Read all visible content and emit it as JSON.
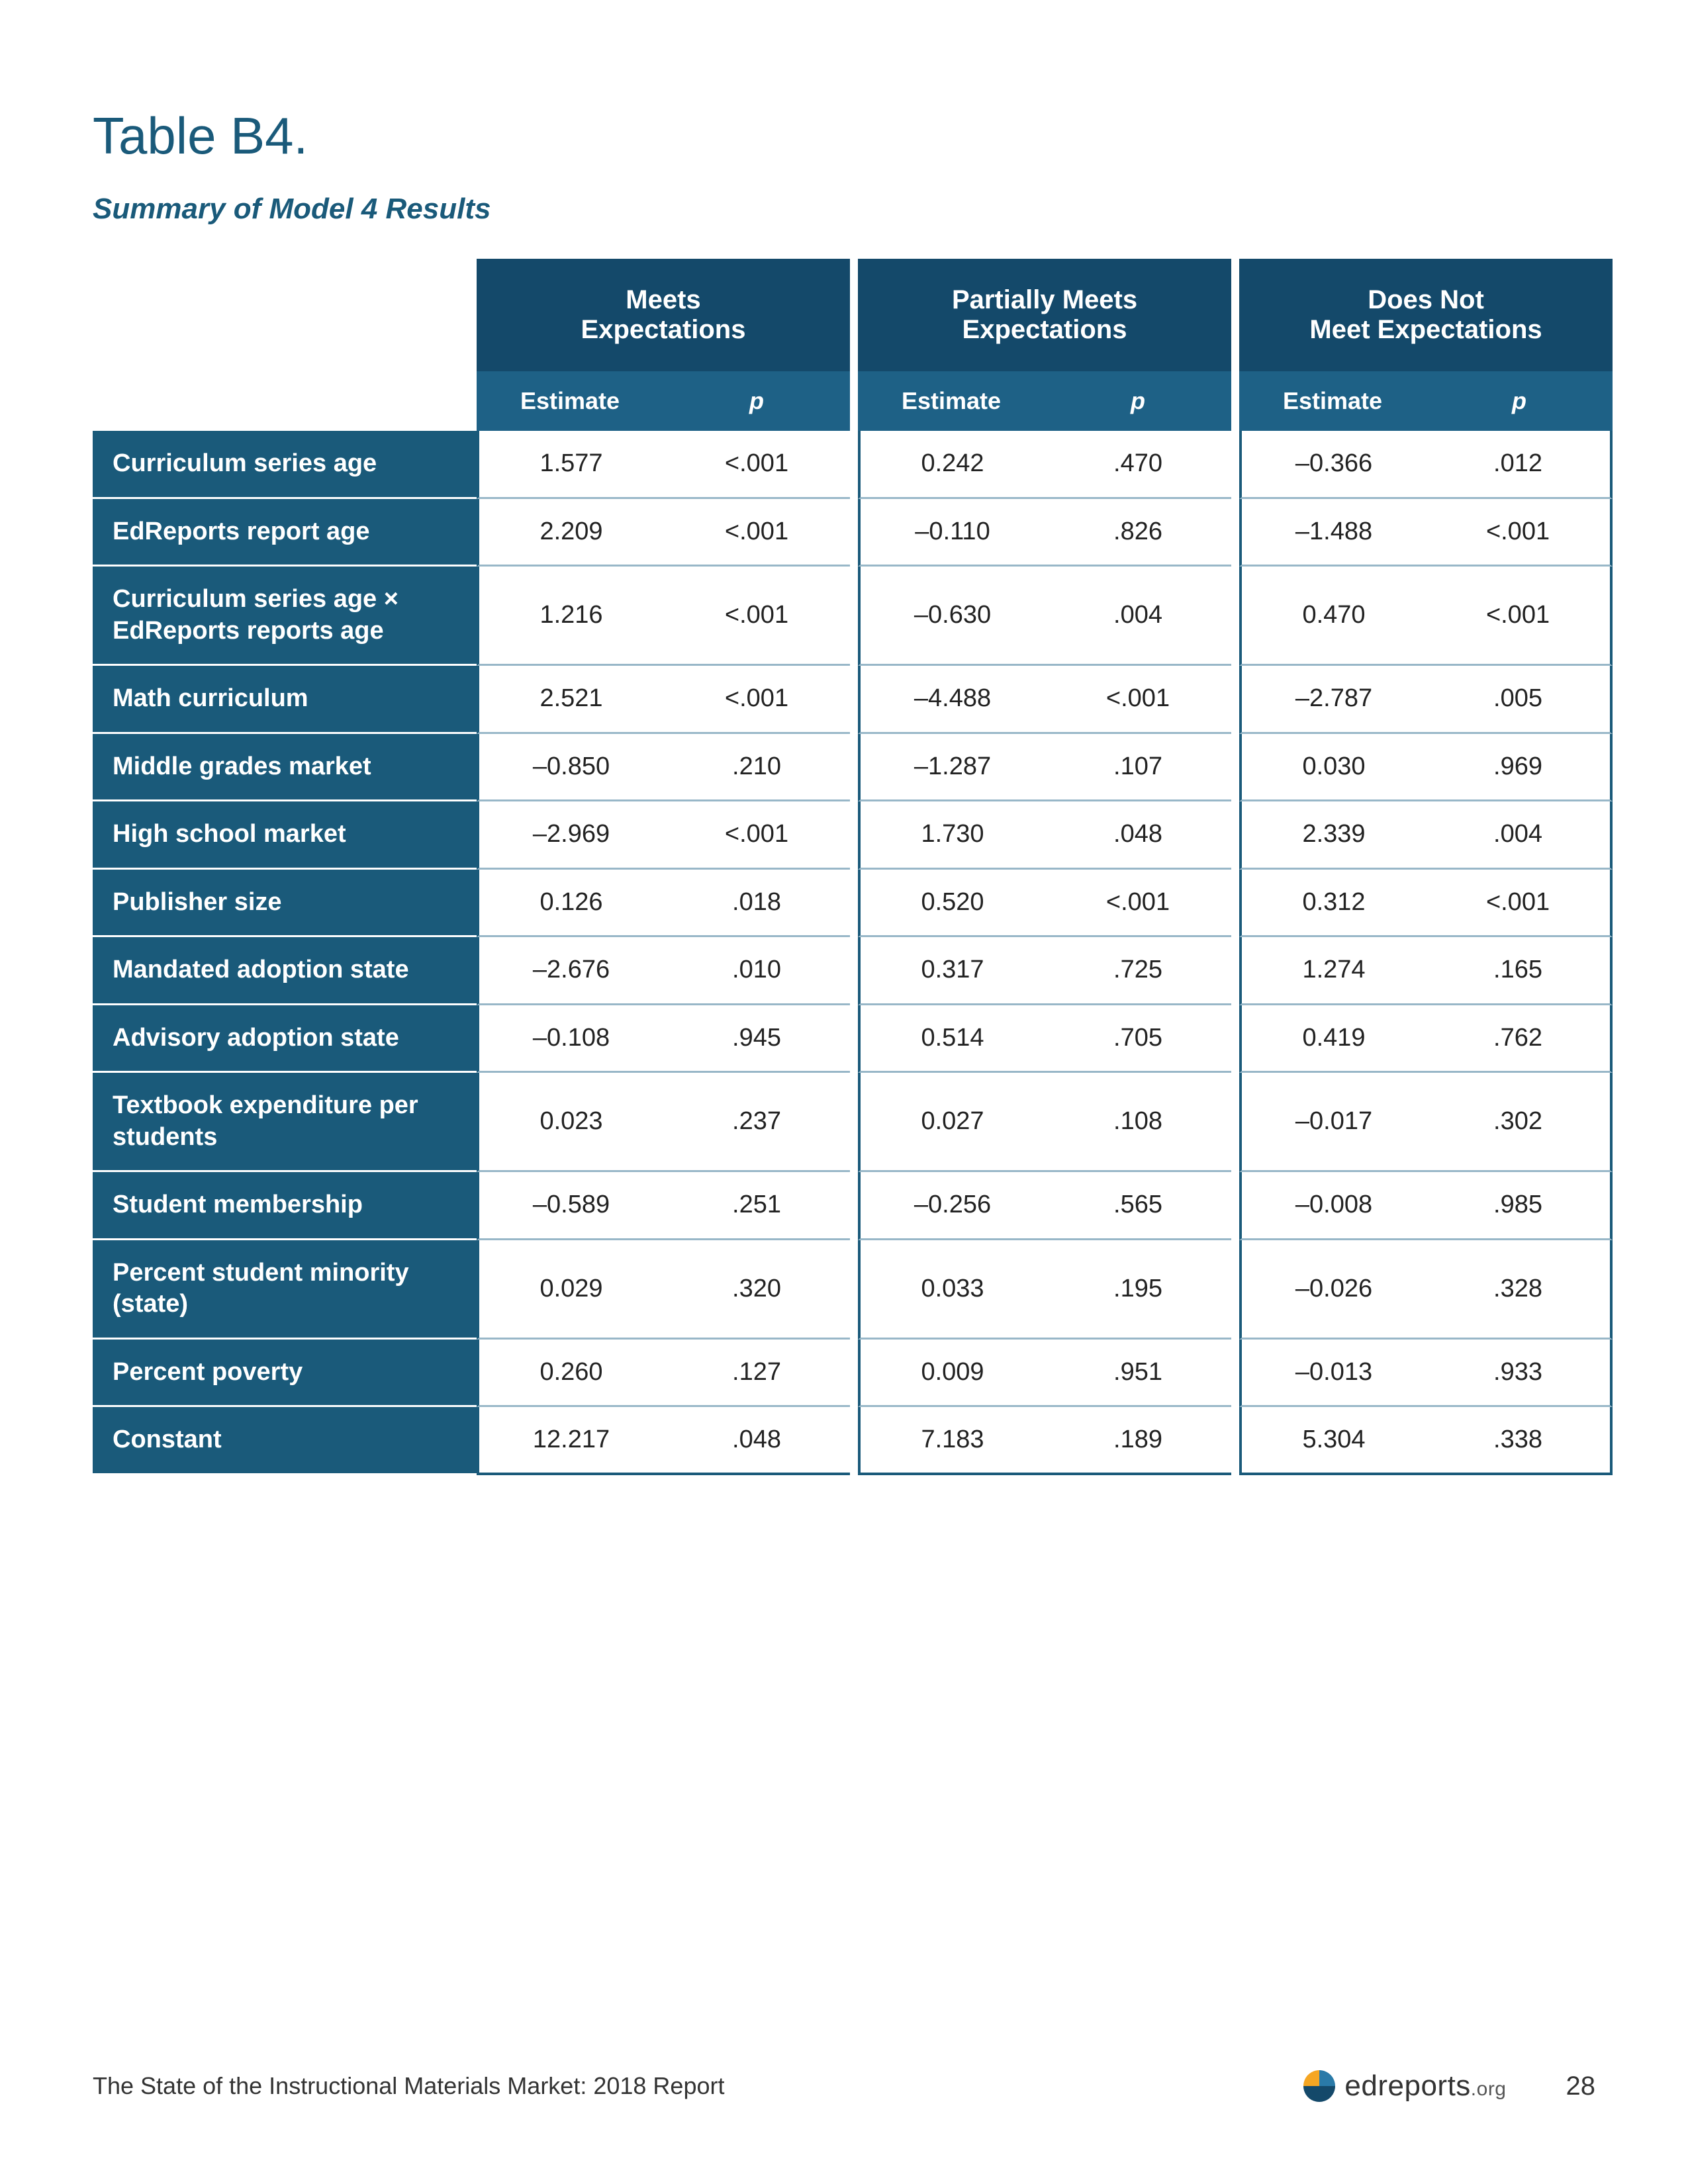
{
  "title": "Table B4.",
  "subtitle": "Summary of Model 4 Results",
  "colors": {
    "header_dark": "#14496a",
    "header_mid": "#1e6186",
    "rowlabel_bg": "#1a5a7a",
    "title_color": "#1a5a7a",
    "grid_line": "#98b7c8",
    "text": "#222222",
    "background": "#ffffff"
  },
  "table": {
    "type": "table",
    "groups": [
      "Meets\nExpectations",
      "Partially Meets\nExpectations",
      "Does Not\nMeet Expectations"
    ],
    "subcolumns": [
      "Estimate",
      "p"
    ],
    "rows": [
      {
        "label": "Curriculum series age",
        "meets": {
          "estimate": "1.577",
          "p": "<.001"
        },
        "partial": {
          "estimate": "0.242",
          "p": ".470"
        },
        "doesnot": {
          "estimate": "–0.366",
          "p": ".012"
        }
      },
      {
        "label": "EdReports report age",
        "meets": {
          "estimate": "2.209",
          "p": "<.001"
        },
        "partial": {
          "estimate": "–0.110",
          "p": ".826"
        },
        "doesnot": {
          "estimate": "–1.488",
          "p": "<.001"
        }
      },
      {
        "label": "Curriculum series age × EdReports reports age",
        "meets": {
          "estimate": "1.216",
          "p": "<.001"
        },
        "partial": {
          "estimate": "–0.630",
          "p": ".004"
        },
        "doesnot": {
          "estimate": "0.470",
          "p": "<.001"
        }
      },
      {
        "label": "Math curriculum",
        "meets": {
          "estimate": "2.521",
          "p": "<.001"
        },
        "partial": {
          "estimate": "–4.488",
          "p": "<.001"
        },
        "doesnot": {
          "estimate": "–2.787",
          "p": ".005"
        }
      },
      {
        "label": "Middle grades market",
        "meets": {
          "estimate": "–0.850",
          "p": ".210"
        },
        "partial": {
          "estimate": "–1.287",
          "p": ".107"
        },
        "doesnot": {
          "estimate": "0.030",
          "p": ".969"
        }
      },
      {
        "label": "High school market",
        "meets": {
          "estimate": "–2.969",
          "p": "<.001"
        },
        "partial": {
          "estimate": "1.730",
          "p": ".048"
        },
        "doesnot": {
          "estimate": "2.339",
          "p": ".004"
        }
      },
      {
        "label": "Publisher size",
        "meets": {
          "estimate": "0.126",
          "p": ".018"
        },
        "partial": {
          "estimate": "0.520",
          "p": "<.001"
        },
        "doesnot": {
          "estimate": "0.312",
          "p": "<.001"
        }
      },
      {
        "label": "Mandated adoption state",
        "meets": {
          "estimate": "–2.676",
          "p": ".010"
        },
        "partial": {
          "estimate": "0.317",
          "p": ".725"
        },
        "doesnot": {
          "estimate": "1.274",
          "p": ".165"
        }
      },
      {
        "label": "Advisory adoption state",
        "meets": {
          "estimate": "–0.108",
          "p": ".945"
        },
        "partial": {
          "estimate": "0.514",
          "p": ".705"
        },
        "doesnot": {
          "estimate": "0.419",
          "p": ".762"
        }
      },
      {
        "label": "Textbook expenditure per students",
        "meets": {
          "estimate": "0.023",
          "p": ".237"
        },
        "partial": {
          "estimate": "0.027",
          "p": ".108"
        },
        "doesnot": {
          "estimate": "–0.017",
          "p": ".302"
        }
      },
      {
        "label": "Student membership",
        "meets": {
          "estimate": "–0.589",
          "p": ".251"
        },
        "partial": {
          "estimate": "–0.256",
          "p": ".565"
        },
        "doesnot": {
          "estimate": "–0.008",
          "p": ".985"
        }
      },
      {
        "label": "Percent student minority (state)",
        "meets": {
          "estimate": "0.029",
          "p": ".320"
        },
        "partial": {
          "estimate": "0.033",
          "p": ".195"
        },
        "doesnot": {
          "estimate": "–0.026",
          "p": ".328"
        }
      },
      {
        "label": "Percent poverty",
        "meets": {
          "estimate": "0.260",
          "p": ".127"
        },
        "partial": {
          "estimate": "0.009",
          "p": ".951"
        },
        "doesnot": {
          "estimate": "–0.013",
          "p": ".933"
        }
      },
      {
        "label": "Constant",
        "meets": {
          "estimate": "12.217",
          "p": ".048"
        },
        "partial": {
          "estimate": "7.183",
          "p": ".189"
        },
        "doesnot": {
          "estimate": "5.304",
          "p": ".338"
        }
      }
    ]
  },
  "footer": {
    "report_title": "The State of the Instructional Materials Market: 2018 Report",
    "page_number": "28",
    "logo_text_main": "edreports",
    "logo_text_suffix": ".org",
    "logo_colors": {
      "top_left": "#f5a623",
      "top_right": "#2a7aa8",
      "bottom": "#14496a"
    }
  }
}
